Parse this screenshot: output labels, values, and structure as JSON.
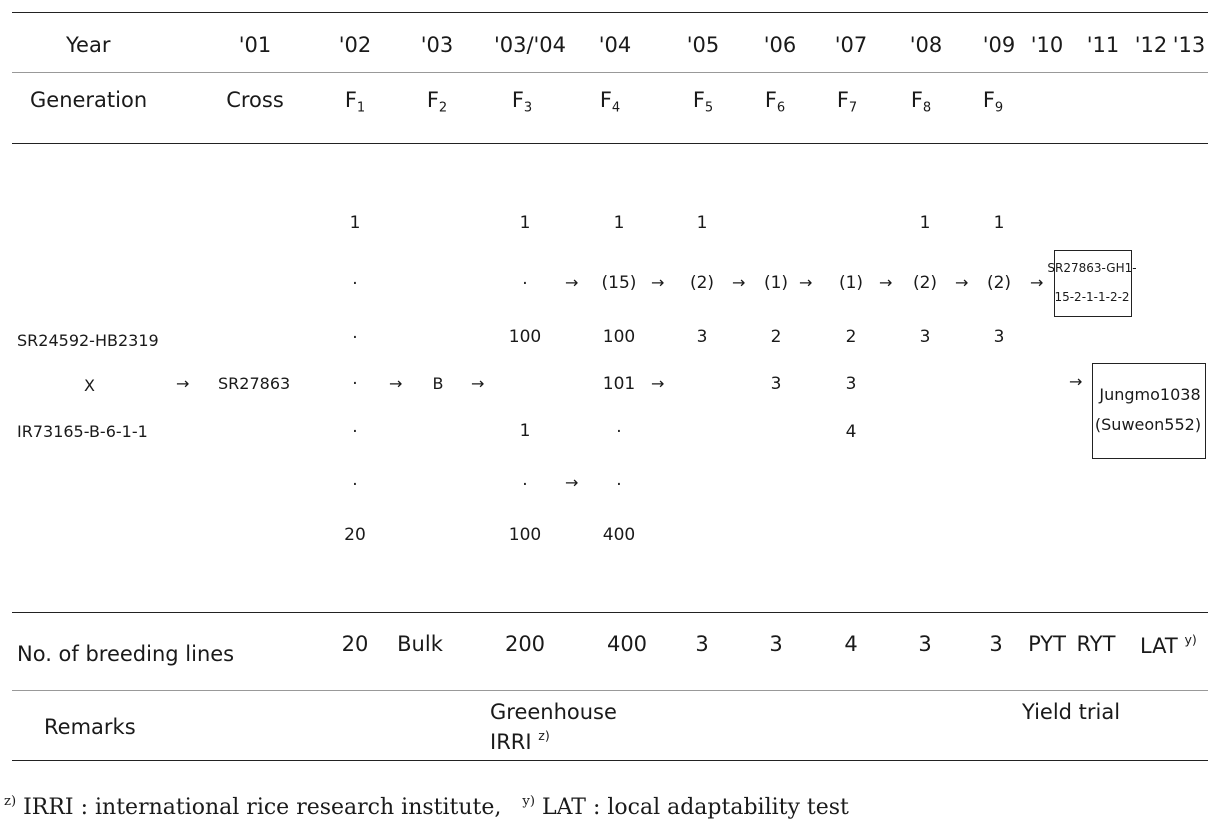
{
  "header": {
    "year_label": "Year",
    "years": [
      "'01",
      "'02",
      "'03",
      "'03/'04",
      "'04",
      "'05",
      "'06",
      "'07",
      "'08",
      "'09",
      "'10",
      "'11",
      "'12",
      "'13"
    ],
    "generation_label": "Generation",
    "cross_label": "Cross",
    "generations": [
      "F",
      "F",
      "F",
      "F",
      "F",
      "F",
      "F",
      "F",
      "F"
    ],
    "gen_subs": [
      "1",
      "2",
      "3",
      "4",
      "5",
      "6",
      "7",
      "8",
      "9"
    ]
  },
  "pedigree": {
    "parent1": "SR24592-HB2319",
    "cross_sign": "X",
    "parent2": "IR73165-B-6-1-1",
    "cross_name": "SR27863",
    "bulk_mark": "B",
    "arrow": "→",
    "dot": "·",
    "f1": {
      "top": "1",
      "bottom": "20"
    },
    "f3": {
      "top": "1",
      "mid1": "100",
      "mid2": "1",
      "bottom": "100"
    },
    "f4": {
      "top": "1",
      "sel": "(15)",
      "mid1": "100",
      "mid2": "101",
      "bottom": "400"
    },
    "f5": {
      "top": "1",
      "sel": "(2)",
      "mid": "3"
    },
    "f6": {
      "sel": "(1)",
      "mid1": "2",
      "mid2": "3"
    },
    "f7": {
      "sel": "(1)",
      "mid1": "2",
      "mid2": "3",
      "mid3": "4"
    },
    "f8": {
      "top": "1",
      "sel": "(2)",
      "mid": "3"
    },
    "f9": {
      "top": "1",
      "sel": "(2)",
      "mid": "3"
    },
    "final_line_l1": "SR27863-GH1-",
    "final_line_l2": "15-2-1-1-2-2",
    "variety_l1": "Jungmo1038",
    "variety_l2": "(Suweon552)"
  },
  "lines_row": {
    "label": "No. of breeding lines",
    "values": [
      "20",
      "Bulk",
      "200",
      "400",
      "3",
      "3",
      "4",
      "3",
      "3"
    ],
    "pyt": "PYT",
    "ryt": "RYT",
    "lat": "LAT",
    "lat_note": "y)"
  },
  "remarks_row": {
    "label": "Remarks",
    "greenhouse": "Greenhouse",
    "irri": "IRRI",
    "irri_note": "z)",
    "yield_trial": "Yield trial"
  },
  "footnotes": {
    "z_mark": "z)",
    "z_text": "IRRI : international rice research  institute,",
    "y_mark": "y)",
    "y_text": "LAT : local adaptability test"
  }
}
